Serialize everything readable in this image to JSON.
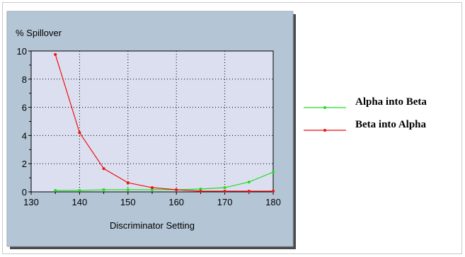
{
  "chart_data": {
    "type": "line",
    "title": "",
    "ylabel": "% Spillover",
    "xlabel": "Discriminator Setting",
    "xlim": [
      130,
      180
    ],
    "ylim": [
      0,
      10
    ],
    "xticks": [
      130,
      140,
      150,
      160,
      170,
      180
    ],
    "yticks": [
      0,
      2,
      4,
      6,
      8,
      10
    ],
    "grid": true,
    "legend_position": "right",
    "x": [
      135,
      140,
      145,
      150,
      155,
      160,
      165,
      170,
      175,
      180
    ],
    "series": [
      {
        "name": "Alpha into Beta",
        "color": "#22dd22",
        "values": [
          0.1,
          0.1,
          0.15,
          0.15,
          0.15,
          0.15,
          0.2,
          0.3,
          0.7,
          1.4
        ]
      },
      {
        "name": "Beta into Alpha",
        "color": "#ee1111",
        "values": [
          9.75,
          4.2,
          1.65,
          0.65,
          0.3,
          0.15,
          0.05,
          0.05,
          0.05,
          0.05
        ]
      }
    ]
  }
}
